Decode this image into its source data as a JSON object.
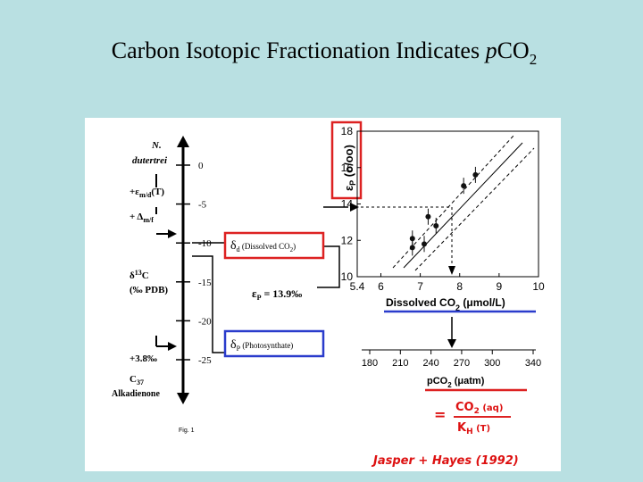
{
  "title": {
    "main": "Carbon Isotopic Fractionation Indicates ",
    "italic": "p",
    "tail": "CO",
    "sub": "2"
  },
  "scale": {
    "ticks": [
      0,
      -5,
      -10,
      -15,
      -20,
      -25
    ],
    "lim": [
      0,
      -25
    ],
    "species_a": "N.",
    "species_b": "dutertrei",
    "eps_md": "+ε",
    "eps_md_sub": "m/d",
    "eps_md_tail": "(T)",
    "delta_mf": "+ Δ",
    "delta_mf_sub": "m/f",
    "d13c_a": "δ",
    "d13c_sup": "13",
    "d13c_b": "C",
    "d13c_unit": "(‰ PDB)",
    "offset": "+3.8‰",
    "c37": "C",
    "c37_sub": "37",
    "alkadienone": "Alkadienone"
  },
  "boxes": {
    "dd": "δ",
    "dd_sub": "d",
    "dd_text": " (Dissolved CO",
    "dd_text_sub": "2",
    "dd_close": ")",
    "ep": "ε",
    "ep_sub": "P",
    "ep_text": " = 13.9‰",
    "dp": "δ",
    "dp_sub": "P",
    "dp_text": " (Photosynthate)"
  },
  "fig_label": "Fig. 1",
  "chart_data": {
    "type": "scatter",
    "y_label": "ε",
    "y_label_sub": "P",
    "y_label_unit": " (o/oo)",
    "x_label": "Dissolved CO",
    "x_label_sub": "2",
    "x_label_unit": " (μmol/L)",
    "x": [
      6.8,
      6.8,
      7.1,
      7.2,
      7.4,
      8.1,
      8.4
    ],
    "values": [
      12.1,
      11.6,
      11.8,
      13.3,
      12.8,
      15.0,
      15.6
    ],
    "color": "#111111",
    "xlim": [
      5.4,
      10
    ],
    "ylim": [
      10,
      18
    ],
    "xticks": [
      5.4,
      6,
      7,
      8,
      9,
      10
    ],
    "yticks": [
      10,
      12,
      14,
      16,
      18
    ],
    "x2lim": [
      180,
      340
    ],
    "x2ticks": [
      180,
      210,
      240,
      270,
      300,
      340
    ],
    "x2_label": "pCO",
    "x2_label_sub": "2",
    "x2_label_unit": " (μatm)"
  },
  "equation": {
    "eq": "=",
    "num": "CO",
    "num_sub": "2",
    "num_tail": " (aq)",
    "den": "K",
    "den_sub": "H",
    "den_tail": " (T)"
  },
  "citation": "Jasper + Hayes (1992)"
}
